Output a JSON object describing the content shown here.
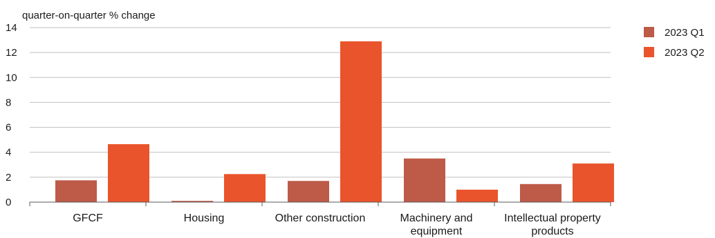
{
  "chart_data": {
    "type": "bar",
    "title": "",
    "xlabel": "",
    "ylabel": "quarter-on-quarter % change",
    "ylim": [
      0,
      14
    ],
    "yticks": [
      0,
      2,
      4,
      6,
      8,
      10,
      12,
      14
    ],
    "grid": true,
    "legend_position": "right",
    "categories": [
      [
        "GFCF"
      ],
      [
        "Housing"
      ],
      [
        "Other construction"
      ],
      [
        "Machinery and",
        "equipment"
      ],
      [
        "Intellectual property",
        "products"
      ]
    ],
    "series": [
      {
        "name": "2023 Q1",
        "color": "#bd5a48",
        "values": [
          1.75,
          0.1,
          1.7,
          3.5,
          1.45
        ]
      },
      {
        "name": "2023 Q2",
        "color": "#ea542c",
        "values": [
          4.65,
          2.25,
          12.9,
          1.0,
          3.1
        ]
      }
    ]
  }
}
